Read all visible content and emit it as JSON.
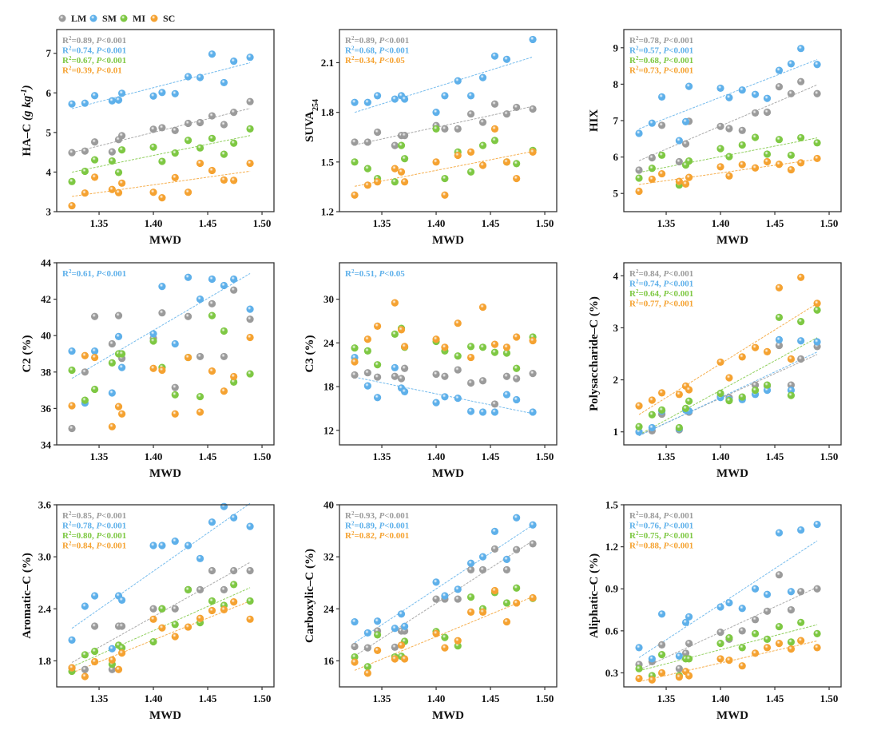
{
  "chart_data": [
    {
      "type": "scatter",
      "xlabel": "MWD",
      "ylabel": [
        {
          "t": "HA–C "
        },
        {
          "t": "(g kg",
          "i": true
        },
        {
          "t": "-1",
          "sup": true,
          "i": true
        },
        {
          "t": ")",
          "i": true
        }
      ],
      "xlim": [
        1.311,
        1.511
      ],
      "ylim": [
        3,
        7.6
      ],
      "xticks": [
        1.35,
        1.4,
        1.45,
        1.5
      ],
      "yticks": [
        3,
        4,
        5,
        6,
        7
      ],
      "tick_decimals": 0,
      "stats": [
        {
          "series": "LM",
          "r2": "0.89",
          "p": "<0.001"
        },
        {
          "series": "SM",
          "r2": "0.74",
          "p": "<0.001"
        },
        {
          "series": "MI",
          "r2": "0.67",
          "p": "<0.001"
        },
        {
          "series": "SC",
          "r2": "0.39",
          "p": "<0.01"
        }
      ],
      "y": {
        "SM": [
          5.72,
          5.74,
          5.93,
          5.8,
          5.82,
          5.99,
          5.92,
          6.01,
          5.98,
          6.41,
          6.39,
          6.98,
          6.26,
          6.8,
          6.9
        ],
        "LM": [
          4.49,
          4.53,
          4.76,
          4.51,
          4.82,
          4.92,
          5.08,
          5.12,
          5.05,
          5.23,
          5.25,
          5.42,
          5.2,
          5.51,
          5.78
        ],
        "MI": [
          3.76,
          4.02,
          4.31,
          4.28,
          3.99,
          4.56,
          4.63,
          4.27,
          4.48,
          4.8,
          4.61,
          4.85,
          4.45,
          4.73,
          5.09
        ],
        "SC": [
          3.15,
          3.47,
          3.87,
          3.56,
          3.48,
          3.72,
          3.49,
          3.35,
          3.86,
          3.49,
          4.22,
          4.04,
          3.8,
          3.79,
          4.22
        ]
      }
    },
    {
      "type": "scatter",
      "xlabel": "MWD",
      "ylabel": [
        {
          "t": "SUVA"
        },
        {
          "t": "254",
          "sub": true
        }
      ],
      "xlim": [
        1.311,
        1.511
      ],
      "ylim": [
        1.2,
        2.3
      ],
      "xticks": [
        1.35,
        1.4,
        1.45,
        1.5
      ],
      "yticks": [
        1.2,
        1.5,
        1.8,
        2.1
      ],
      "tick_decimals": 1,
      "stats": [
        {
          "series": "LM",
          "r2": "0.89",
          "p": "<0.001"
        },
        {
          "series": "SM",
          "r2": "0.68",
          "p": "<0.001"
        },
        {
          "series": "SC",
          "r2": "0.34",
          "p": "<0.05"
        }
      ],
      "y": {
        "SM": [
          1.86,
          1.86,
          1.9,
          1.88,
          1.9,
          1.88,
          1.8,
          1.9,
          1.99,
          1.9,
          2.01,
          2.14,
          2.12,
          null,
          2.24
        ],
        "LM": [
          1.62,
          1.62,
          1.68,
          1.6,
          1.66,
          1.66,
          1.72,
          1.7,
          1.7,
          1.79,
          1.74,
          1.85,
          1.79,
          1.83,
          1.82
        ],
        "MI": [
          1.5,
          1.46,
          1.4,
          1.38,
          1.6,
          1.52,
          1.7,
          1.4,
          1.56,
          1.44,
          1.6,
          1.63,
          1.5,
          1.49,
          1.57
        ],
        "SC": [
          1.3,
          1.36,
          1.38,
          1.46,
          1.44,
          1.38,
          1.5,
          1.3,
          1.54,
          1.56,
          1.48,
          1.7,
          1.5,
          1.4,
          1.56
        ]
      }
    },
    {
      "type": "scatter",
      "xlabel": "MWD",
      "ylabel": [
        {
          "t": "HIX"
        }
      ],
      "xlim": [
        1.311,
        1.511
      ],
      "ylim": [
        4.5,
        9.5
      ],
      "xticks": [
        1.35,
        1.4,
        1.45,
        1.5
      ],
      "yticks": [
        5,
        6,
        7,
        8,
        9
      ],
      "tick_decimals": 0,
      "stats": [
        {
          "series": "LM",
          "r2": "0.78",
          "p": "<0.001"
        },
        {
          "series": "SM",
          "r2": "0.57",
          "p": "<0.001"
        },
        {
          "series": "MI",
          "r2": "0.68",
          "p": "<0.001"
        },
        {
          "series": "SC",
          "r2": "0.73",
          "p": "<0.001"
        }
      ],
      "y": {
        "SM": [
          6.65,
          6.93,
          7.65,
          6.45,
          6.97,
          7.94,
          7.89,
          7.63,
          7.84,
          7.72,
          7.61,
          8.38,
          8.56,
          8.98,
          8.54
        ],
        "LM": [
          5.64,
          5.98,
          6.87,
          5.87,
          6.36,
          6.98,
          6.84,
          6.78,
          6.73,
          7.21,
          7.23,
          7.93,
          7.74,
          8.07,
          7.74
        ],
        "MI": [
          5.42,
          5.69,
          6.05,
          5.23,
          5.78,
          5.89,
          6.23,
          6.01,
          6.33,
          6.54,
          6.08,
          6.48,
          6.05,
          6.53,
          6.39
        ],
        "SC": [
          5.06,
          5.39,
          5.54,
          5.33,
          5.26,
          5.44,
          5.73,
          5.48,
          5.79,
          5.7,
          5.87,
          5.8,
          5.65,
          5.84,
          5.96
        ]
      }
    },
    {
      "type": "scatter",
      "xlabel": "MWD",
      "ylabel": [
        {
          "t": "C2 (%)"
        }
      ],
      "xlim": [
        1.311,
        1.511
      ],
      "ylim": [
        34,
        44
      ],
      "xticks": [
        1.35,
        1.4,
        1.45,
        1.5
      ],
      "yticks": [
        34,
        36,
        38,
        40,
        42,
        44
      ],
      "tick_decimals": 0,
      "stats": [
        {
          "series": "SM",
          "r2": "0.61",
          "p": "<0.001"
        }
      ],
      "y": {
        "SM": [
          39.15,
          36.3,
          39.15,
          36.85,
          39.95,
          38.25,
          40.1,
          42.7,
          39.55,
          43.2,
          42.0,
          43.1,
          42.75,
          43.1,
          41.45
        ],
        "LM": [
          34.9,
          38.0,
          41.05,
          39.55,
          41.1,
          38.75,
          39.85,
          41.25,
          37.15,
          41.05,
          38.85,
          41.75,
          38.85,
          42.5,
          40.9
        ],
        "MI": [
          38.1,
          36.45,
          37.05,
          38.5,
          39.0,
          39.0,
          39.7,
          38.25,
          36.75,
          38.8,
          36.65,
          41.1,
          40.25,
          37.45,
          37.9
        ],
        "SC": [
          36.15,
          38.9,
          38.8,
          35.0,
          36.1,
          35.7,
          38.2,
          38.1,
          35.7,
          38.8,
          35.8,
          38.05,
          36.95,
          37.75,
          39.9
        ]
      }
    },
    {
      "type": "scatter",
      "xlabel": "MWD",
      "ylabel": [
        {
          "t": "C3 (%)"
        }
      ],
      "xlim": [
        1.311,
        1.511
      ],
      "ylim": [
        10,
        35
      ],
      "xticks": [
        1.35,
        1.4,
        1.45,
        1.5
      ],
      "yticks": [
        12,
        18,
        24,
        30
      ],
      "tick_decimals": 0,
      "stats": [
        {
          "series": "SM",
          "r2": "0.51",
          "p": "<0.05"
        }
      ],
      "y": {
        "SM": [
          22.0,
          18.1,
          16.5,
          20.6,
          17.8,
          17.3,
          15.8,
          16.6,
          16.4,
          14.6,
          14.5,
          14.5,
          16.9,
          16.2,
          14.5
        ],
        "LM": [
          19.6,
          19.9,
          19.3,
          19.4,
          19.1,
          20.5,
          19.7,
          19.4,
          20.3,
          18.5,
          18.8,
          15.6,
          19.4,
          19.1,
          19.8
        ],
        "MI": [
          23.3,
          22.9,
          21.0,
          25.2,
          26.0,
          23.4,
          24.2,
          22.9,
          22.2,
          23.5,
          23.4,
          22.7,
          22.6,
          20.5,
          24.8
        ],
        "SC": [
          21.4,
          24.5,
          26.3,
          29.5,
          25.8,
          23.5,
          24.5,
          23.4,
          26.7,
          22.0,
          28.9,
          23.8,
          23.4,
          24.8,
          24.3
        ]
      }
    },
    {
      "type": "scatter",
      "xlabel": "MWD",
      "ylabel": [
        {
          "t": "Polysaccharide–C (%)"
        }
      ],
      "xlim": [
        1.311,
        1.511
      ],
      "ylim": [
        0.75,
        4.25
      ],
      "xticks": [
        1.35,
        1.4,
        1.45,
        1.5
      ],
      "yticks": [
        1,
        2,
        3,
        4
      ],
      "tick_decimals": 0,
      "stats": [
        {
          "series": "LM",
          "r2": "0.84",
          "p": "<0.001"
        },
        {
          "series": "SM",
          "r2": "0.74",
          "p": "<0.001"
        },
        {
          "series": "MI",
          "r2": "0.64",
          "p": "<0.001"
        },
        {
          "series": "SC",
          "r2": "0.77",
          "p": "<0.001"
        }
      ],
      "y": {
        "LM": [
          1.0,
          1.02,
          1.34,
          1.04,
          1.44,
          1.38,
          1.68,
          1.66,
          1.64,
          1.9,
          1.88,
          2.66,
          1.9,
          2.4,
          2.64
        ],
        "SM": [
          1.0,
          1.08,
          1.4,
          1.06,
          1.42,
          1.4,
          1.66,
          1.62,
          1.62,
          1.72,
          1.8,
          2.77,
          1.8,
          2.75,
          2.73
        ],
        "MI": [
          1.1,
          1.33,
          1.42,
          1.08,
          1.45,
          1.59,
          1.74,
          1.6,
          1.67,
          1.8,
          1.9,
          3.2,
          1.7,
          3.12,
          3.34
        ],
        "SC": [
          1.5,
          1.61,
          1.75,
          1.72,
          1.88,
          1.81,
          2.34,
          2.04,
          2.44,
          2.62,
          2.54,
          3.77,
          2.4,
          3.97,
          3.47
        ]
      }
    },
    {
      "type": "scatter",
      "xlabel": "MWD",
      "ylabel": [
        {
          "t": "Aromatic–C (%)"
        }
      ],
      "xlim": [
        1.311,
        1.511
      ],
      "ylim": [
        1.5,
        3.6
      ],
      "xticks": [
        1.35,
        1.4,
        1.45,
        1.5
      ],
      "yticks": [
        1.8,
        2.4,
        3.0,
        3.6
      ],
      "tick_decimals": 1,
      "stats": [
        {
          "series": "LM",
          "r2": "0.85",
          "p": "<0.001"
        },
        {
          "series": "SM",
          "r2": "0.78",
          "p": "<0.001"
        },
        {
          "series": "MI",
          "r2": "0.80",
          "p": "<0.001"
        },
        {
          "series": "SC",
          "r2": "0.84",
          "p": "<0.001"
        }
      ],
      "y": {
        "SM": [
          2.04,
          2.43,
          2.55,
          1.94,
          2.55,
          2.5,
          3.13,
          3.13,
          3.18,
          3.13,
          2.98,
          3.4,
          3.58,
          3.45,
          3.35
        ],
        "LM": [
          1.72,
          1.7,
          2.2,
          1.7,
          2.2,
          2.2,
          2.4,
          2.4,
          2.4,
          2.62,
          2.62,
          2.84,
          2.62,
          2.84,
          2.84
        ],
        "MI": [
          1.68,
          1.87,
          1.91,
          1.76,
          1.98,
          1.95,
          2.02,
          2.4,
          2.22,
          2.62,
          2.24,
          2.49,
          2.44,
          2.68,
          2.49
        ],
        "SC": [
          1.72,
          1.62,
          1.79,
          1.81,
          1.7,
          1.89,
          2.28,
          2.18,
          2.08,
          2.19,
          2.29,
          2.38,
          2.39,
          2.48,
          2.28
        ]
      }
    },
    {
      "type": "scatter",
      "xlabel": "MWD",
      "ylabel": [
        {
          "t": "Carboxylic–C (%)"
        }
      ],
      "xlim": [
        1.311,
        1.511
      ],
      "ylim": [
        12,
        40
      ],
      "xticks": [
        1.35,
        1.4,
        1.45,
        1.5
      ],
      "yticks": [
        16,
        24,
        32,
        40
      ],
      "tick_decimals": 0,
      "stats": [
        {
          "series": "LM",
          "r2": "0.93",
          "p": "<0.001"
        },
        {
          "series": "SM",
          "r2": "0.89",
          "p": "<0.001"
        },
        {
          "series": "SC",
          "r2": "0.82",
          "p": "<0.001"
        }
      ],
      "y": {
        "SM": [
          22.0,
          20.3,
          22.1,
          21.0,
          23.2,
          21.3,
          28.1,
          26.0,
          27.0,
          31.0,
          32.0,
          35.9,
          31.6,
          38.0,
          36.9
        ],
        "LM": [
          18.2,
          18.0,
          20.6,
          18.1,
          20.6,
          20.6,
          25.5,
          25.5,
          25.5,
          30.0,
          30.0,
          33.2,
          30.0,
          33.1,
          34.0
        ],
        "MI": [
          16.6,
          15.1,
          20.0,
          16.6,
          16.7,
          19.0,
          20.5,
          19.6,
          18.3,
          25.8,
          24.0,
          26.5,
          24.9,
          27.2,
          25.6
        ],
        "SC": [
          15.8,
          14.1,
          17.6,
          16.3,
          18.4,
          16.3,
          20.2,
          18.0,
          19.1,
          23.5,
          23.5,
          26.8,
          22.0,
          24.9,
          25.7
        ]
      }
    },
    {
      "type": "scatter",
      "xlabel": "MWD",
      "ylabel": [
        {
          "t": "Aliphatic–C (%)"
        }
      ],
      "xlim": [
        1.311,
        1.511
      ],
      "ylim": [
        0.2,
        1.5
      ],
      "xticks": [
        1.35,
        1.4,
        1.45,
        1.5
      ],
      "yticks": [
        0.3,
        0.6,
        0.9,
        1.2,
        1.5
      ],
      "tick_decimals": 1,
      "stats": [
        {
          "series": "LM",
          "r2": "0.84",
          "p": "<0.001"
        },
        {
          "series": "SM",
          "r2": "0.76",
          "p": "<0.001"
        },
        {
          "series": "MI",
          "r2": "0.75",
          "p": "<0.001"
        },
        {
          "series": "SC",
          "r2": "0.88",
          "p": "<0.001"
        }
      ],
      "y": {
        "SM": [
          0.48,
          0.4,
          0.72,
          0.42,
          0.66,
          0.7,
          0.77,
          0.8,
          0.76,
          0.9,
          0.86,
          1.3,
          0.88,
          1.32,
          1.36
        ],
        "LM": [
          0.36,
          0.38,
          0.5,
          0.33,
          0.44,
          0.51,
          0.59,
          0.54,
          0.6,
          0.68,
          0.74,
          1.0,
          0.75,
          0.88,
          0.9
        ],
        "MI": [
          0.33,
          0.28,
          0.43,
          0.28,
          0.4,
          0.4,
          0.51,
          0.55,
          0.48,
          0.58,
          0.54,
          0.63,
          0.52,
          0.66,
          0.58
        ],
        "SC": [
          0.26,
          0.25,
          0.3,
          0.27,
          0.31,
          0.28,
          0.4,
          0.39,
          0.35,
          0.44,
          0.48,
          0.51,
          0.47,
          0.53,
          0.48
        ]
      }
    }
  ],
  "x_values": [
    1.325,
    1.337,
    1.346,
    1.362,
    1.368,
    1.371,
    1.4,
    1.408,
    1.42,
    1.432,
    1.443,
    1.454,
    1.465,
    1.474,
    1.489
  ],
  "series": [
    {
      "name": "LM",
      "color": "#9b9b9b"
    },
    {
      "name": "SM",
      "color": "#5eb0ea"
    },
    {
      "name": "MI",
      "color": "#7ec843"
    },
    {
      "name": "SC",
      "color": "#f5a231"
    }
  ],
  "legend_placement": "top-left",
  "grid": false
}
